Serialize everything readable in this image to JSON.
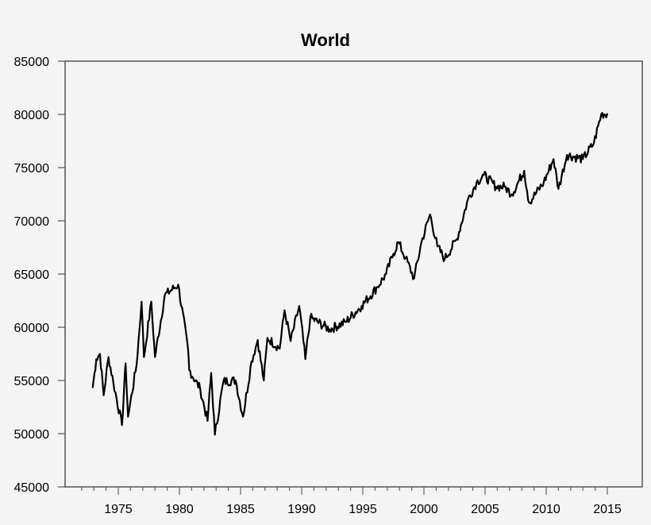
{
  "chart_data": {
    "type": "line",
    "title": "World",
    "xlabel": "",
    "ylabel": "",
    "xlim": [
      1971.4,
      2018.6
    ],
    "ylim": [
      45000,
      85000
    ],
    "grid": false,
    "legend": null,
    "x_ticks": [
      1975,
      1980,
      1985,
      1990,
      1995,
      2000,
      2005,
      2010,
      2015
    ],
    "y_ticks": [
      45000,
      50000,
      55000,
      60000,
      65000,
      70000,
      75000,
      80000,
      85000
    ],
    "series": [
      {
        "name": "World",
        "color": "#000000",
        "points": [
          [
            1972.9,
            54300
          ],
          [
            1973.2,
            57000
          ],
          [
            1973.5,
            57500
          ],
          [
            1973.8,
            53600
          ],
          [
            1974.2,
            57200
          ],
          [
            1974.6,
            54800
          ],
          [
            1975.3,
            50800
          ],
          [
            1975.6,
            56600
          ],
          [
            1975.8,
            51600
          ],
          [
            1976.5,
            56500
          ],
          [
            1976.9,
            62400
          ],
          [
            1977.1,
            57200
          ],
          [
            1977.7,
            62400
          ],
          [
            1978.0,
            57200
          ],
          [
            1978.8,
            63000
          ],
          [
            1979.9,
            64000
          ],
          [
            1980.7,
            58000
          ],
          [
            1980.8,
            56000
          ],
          [
            1981.7,
            54200
          ],
          [
            1982.3,
            51200
          ],
          [
            1982.6,
            55700
          ],
          [
            1982.9,
            49900
          ],
          [
            1983.6,
            54900
          ],
          [
            1984.6,
            55000
          ],
          [
            1985.2,
            51600
          ],
          [
            1985.9,
            56800
          ],
          [
            1986.4,
            58800
          ],
          [
            1986.9,
            55000
          ],
          [
            1987.2,
            59000
          ],
          [
            1988.2,
            58000
          ],
          [
            1988.6,
            61600
          ],
          [
            1989.1,
            58700
          ],
          [
            1989.8,
            62000
          ],
          [
            1990.3,
            57000
          ],
          [
            1990.7,
            60900
          ],
          [
            1992.3,
            59800
          ],
          [
            1993.6,
            60500
          ],
          [
            1994.9,
            62000
          ],
          [
            1996.2,
            63800
          ],
          [
            1996.9,
            65000
          ],
          [
            1997.5,
            66900
          ],
          [
            1997.9,
            68000
          ],
          [
            1998.5,
            66500
          ],
          [
            1999.2,
            64600
          ],
          [
            1999.8,
            68000
          ],
          [
            2000.5,
            70600
          ],
          [
            2001.1,
            67600
          ],
          [
            2001.7,
            66400
          ],
          [
            2002.7,
            68300
          ],
          [
            2003.6,
            72000
          ],
          [
            2004.3,
            73600
          ],
          [
            2004.9,
            74300
          ],
          [
            2005.9,
            73200
          ],
          [
            2006.6,
            73200
          ],
          [
            2007.2,
            72500
          ],
          [
            2008.2,
            74700
          ],
          [
            2008.6,
            71700
          ],
          [
            2009.8,
            73600
          ],
          [
            2010.6,
            75800
          ],
          [
            2011.0,
            73000
          ],
          [
            2011.7,
            76200
          ],
          [
            2013.0,
            75800
          ],
          [
            2013.9,
            77300
          ],
          [
            2014.5,
            80000
          ],
          [
            2015.0,
            80100
          ]
        ]
      }
    ]
  }
}
